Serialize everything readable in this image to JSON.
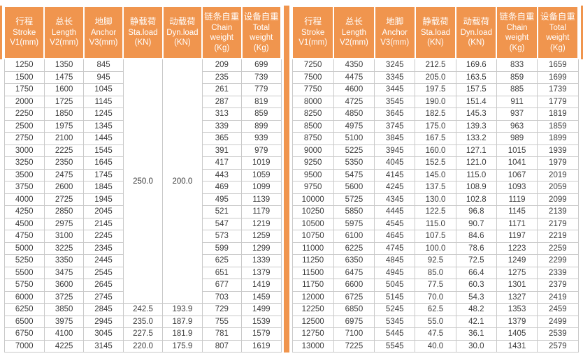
{
  "colors": {
    "header_bg": "#F0954E",
    "header_text": "#FFFFFF",
    "cell_border": "#C9C9C9",
    "cell_text": "#3C3C3C",
    "divider": "#F0954E"
  },
  "columns": [
    {
      "cn": "行程",
      "en": [
        "Stroke",
        "V1(mm)"
      ]
    },
    {
      "cn": "总长",
      "en": [
        "Length",
        "V2(mm)"
      ]
    },
    {
      "cn": "地脚",
      "en": [
        "Anchor",
        "V3(mm)"
      ]
    },
    {
      "cn": "静载荷",
      "en": [
        "Sta.load",
        "(KN)"
      ]
    },
    {
      "cn": "动载荷",
      "en": [
        "Dyn.load",
        "(KN)"
      ]
    },
    {
      "cn": "链条自重",
      "en": [
        "Chain",
        "weight",
        "(Kg)"
      ]
    },
    {
      "cn": "设备自重",
      "en": [
        "Total",
        "weight",
        "(Kg)"
      ]
    }
  ],
  "left_table": {
    "merged": {
      "sta_load": "250.0",
      "dyn_load": "200.0",
      "row_span": 20
    },
    "rows": [
      [
        "1250",
        "1350",
        "845",
        null,
        null,
        "209",
        "699"
      ],
      [
        "1500",
        "1475",
        "945",
        null,
        null,
        "235",
        "739"
      ],
      [
        "1750",
        "1600",
        "1045",
        null,
        null,
        "261",
        "779"
      ],
      [
        "2000",
        "1725",
        "1145",
        null,
        null,
        "287",
        "819"
      ],
      [
        "2250",
        "1850",
        "1245",
        null,
        null,
        "313",
        "859"
      ],
      [
        "2500",
        "1975",
        "1345",
        null,
        null,
        "339",
        "899"
      ],
      [
        "2750",
        "2100",
        "1445",
        null,
        null,
        "365",
        "939"
      ],
      [
        "3000",
        "2225",
        "1545",
        null,
        null,
        "391",
        "979"
      ],
      [
        "3250",
        "2350",
        "1645",
        null,
        null,
        "417",
        "1019"
      ],
      [
        "3500",
        "2475",
        "1745",
        null,
        null,
        "443",
        "1059"
      ],
      [
        "3750",
        "2600",
        "1845",
        null,
        null,
        "469",
        "1099"
      ],
      [
        "4000",
        "2725",
        "1945",
        null,
        null,
        "495",
        "1139"
      ],
      [
        "4250",
        "2850",
        "2045",
        null,
        null,
        "521",
        "1179"
      ],
      [
        "4500",
        "2975",
        "2145",
        null,
        null,
        "547",
        "1219"
      ],
      [
        "4750",
        "3100",
        "2245",
        null,
        null,
        "573",
        "1259"
      ],
      [
        "5000",
        "3225",
        "2345",
        null,
        null,
        "599",
        "1299"
      ],
      [
        "5250",
        "3350",
        "2445",
        null,
        null,
        "625",
        "1339"
      ],
      [
        "5500",
        "3475",
        "2545",
        null,
        null,
        "651",
        "1379"
      ],
      [
        "5750",
        "3600",
        "2645",
        null,
        null,
        "677",
        "1419"
      ],
      [
        "6000",
        "3725",
        "2745",
        null,
        null,
        "703",
        "1459"
      ],
      [
        "6250",
        "3850",
        "2845",
        "242.5",
        "193.9",
        "729",
        "1499"
      ],
      [
        "6500",
        "3975",
        "2945",
        "235.0",
        "187.9",
        "755",
        "1539"
      ],
      [
        "6750",
        "4100",
        "3045",
        "227.5",
        "181.9",
        "781",
        "1579"
      ],
      [
        "7000",
        "4225",
        "3145",
        "220.0",
        "175.9",
        "807",
        "1619"
      ]
    ]
  },
  "right_table": {
    "rows": [
      [
        "7250",
        "4350",
        "3245",
        "212.5",
        "169.6",
        "833",
        "1659"
      ],
      [
        "7500",
        "4475",
        "3345",
        "205.0",
        "163.5",
        "859",
        "1699"
      ],
      [
        "7750",
        "4600",
        "3445",
        "197.5",
        "157.5",
        "885",
        "1739"
      ],
      [
        "8000",
        "4725",
        "3545",
        "190.0",
        "151.4",
        "911",
        "1779"
      ],
      [
        "8250",
        "4850",
        "3645",
        "182.5",
        "145.3",
        "937",
        "1819"
      ],
      [
        "8500",
        "4975",
        "3745",
        "175.0",
        "139.3",
        "963",
        "1859"
      ],
      [
        "8750",
        "5100",
        "3845",
        "167.5",
        "133.2",
        "989",
        "1899"
      ],
      [
        "9000",
        "5225",
        "3945",
        "160.0",
        "127.1",
        "1015",
        "1939"
      ],
      [
        "9250",
        "5350",
        "4045",
        "152.5",
        "121.0",
        "1041",
        "1979"
      ],
      [
        "9500",
        "5475",
        "4145",
        "145.0",
        "115.0",
        "1067",
        "2019"
      ],
      [
        "9750",
        "5600",
        "4245",
        "137.5",
        "108.9",
        "1093",
        "2059"
      ],
      [
        "10000",
        "5725",
        "4345",
        "130.0",
        "102.8",
        "1119",
        "2099"
      ],
      [
        "10250",
        "5850",
        "4445",
        "122.5",
        "96.8",
        "1145",
        "2139"
      ],
      [
        "10500",
        "5975",
        "4545",
        "115.0",
        "90.7",
        "1171",
        "2179"
      ],
      [
        "10750",
        "6100",
        "4645",
        "107.5",
        "84.6",
        "1197",
        "2219"
      ],
      [
        "11000",
        "6225",
        "4745",
        "100.0",
        "78.6",
        "1223",
        "2259"
      ],
      [
        "11250",
        "6350",
        "4845",
        "92.5",
        "72.5",
        "1249",
        "2299"
      ],
      [
        "11500",
        "6475",
        "4945",
        "85.0",
        "66.4",
        "1275",
        "2339"
      ],
      [
        "11750",
        "6600",
        "5045",
        "77.5",
        "60.3",
        "1301",
        "2379"
      ],
      [
        "12000",
        "6725",
        "5145",
        "70.0",
        "54.3",
        "1327",
        "2419"
      ],
      [
        "12250",
        "6850",
        "5245",
        "62.5",
        "48.2",
        "1353",
        "2459"
      ],
      [
        "12500",
        "6975",
        "5345",
        "55.0",
        "42.1",
        "1379",
        "2499"
      ],
      [
        "12750",
        "7100",
        "5445",
        "47.5",
        "36.1",
        "1405",
        "2539"
      ],
      [
        "13000",
        "7225",
        "5545",
        "40.0",
        "30.0",
        "1431",
        "2579"
      ]
    ]
  }
}
